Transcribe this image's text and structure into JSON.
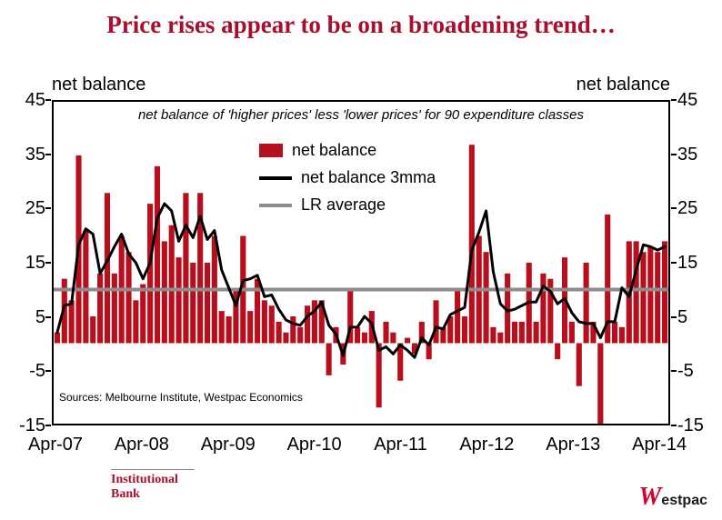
{
  "title": "Price rises appear to be on a broadening trend…",
  "axis_label_left": "net balance",
  "axis_label_right": "net balance",
  "subtitle": "net balance of 'higher prices' less 'lower prices' for 90 expenditure classes",
  "source": "Sources: Melbourne Institute, Westpac Economics",
  "footer": {
    "brand_line1": "Institutional",
    "brand_line2": "Bank",
    "logo_w": "W",
    "logo_rest": "estpac"
  },
  "colors": {
    "title": "#A60F2D",
    "bar": "#B80F1E",
    "line": "#000000",
    "lr": "#8C8C8C",
    "brand": "#A60F2D",
    "logo_w": "#D5002B"
  },
  "chart_data": {
    "type": "bar",
    "title": "Price rises appear to be on a broadening trend…",
    "subtitle": "net balance of 'higher prices' less 'lower prices' for 90 expenditure classes",
    "ylabel": "net balance",
    "ylim": [
      -15,
      45
    ],
    "y_ticks": [
      45,
      35,
      25,
      15,
      5,
      -5,
      -15
    ],
    "x_tick_labels": [
      "Apr-07",
      "Apr-08",
      "Apr-09",
      "Apr-10",
      "Apr-11",
      "Apr-12",
      "Apr-13",
      "Apr-14"
    ],
    "x_tick_month_indices": [
      0,
      12,
      24,
      36,
      48,
      60,
      72,
      84
    ],
    "frequency": "monthly",
    "start_month": "Apr-07",
    "end_month": "Apr-14",
    "grid": false,
    "legend_position": "upper-center-inside",
    "series": [
      {
        "name": "net balance",
        "type": "bar",
        "values": [
          2,
          12,
          8,
          35,
          21,
          5,
          13,
          28,
          13,
          20,
          17,
          8,
          11,
          26,
          33,
          19,
          22,
          16,
          28,
          15,
          28,
          15,
          20,
          6,
          5,
          10,
          20,
          6,
          12,
          8,
          7,
          4,
          2,
          5,
          3,
          7,
          8,
          8,
          -6,
          3,
          -4,
          10,
          3,
          2,
          6,
          -12,
          4,
          2,
          -7,
          1,
          -2,
          4,
          -3,
          8,
          3,
          5,
          10,
          5,
          37,
          20,
          17,
          3,
          2,
          13,
          4,
          4,
          15,
          4,
          13,
          12,
          -3,
          16,
          4,
          -8,
          15,
          4,
          -16,
          24,
          4,
          3,
          19,
          19,
          17,
          18,
          17,
          19
        ]
      },
      {
        "name": "net balance 3mma",
        "type": "line",
        "derived": "3-month moving average of net balance"
      },
      {
        "name": "LR average",
        "type": "line",
        "value": 10
      }
    ],
    "legend": [
      {
        "label": "net balance",
        "swatch": "bar"
      },
      {
        "label": "net balance 3mma",
        "swatch": "line-black"
      },
      {
        "label": "LR average",
        "swatch": "line-gray"
      }
    ]
  }
}
